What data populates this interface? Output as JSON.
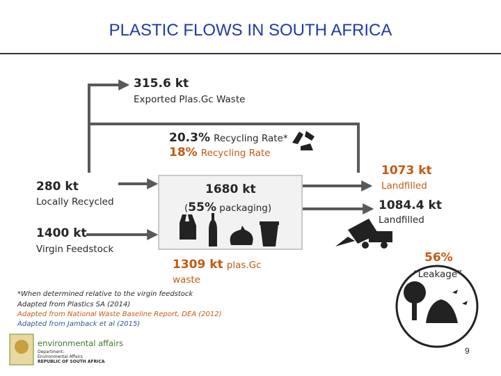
{
  "header": {
    "title": "PLASTIC FLOWS IN SOUTH AFRICA"
  },
  "exported": {
    "amount": "315.6 kt",
    "label": "Exported Plas.Gc Waste"
  },
  "recycling": {
    "rate_star": "20.3%",
    "rate_star_label": "Recycling Rate*",
    "rate": "18%",
    "rate_label": "Recycling Rate"
  },
  "locally_recycled": {
    "amount": "280 kt",
    "label": "Locally Recycled"
  },
  "virgin": {
    "amount": "1400 kt",
    "label": "Virgin Feedstock"
  },
  "consumption": {
    "amount": "1680 kt",
    "open": "(",
    "share": "55%",
    "rest": " packaging)"
  },
  "waste": {
    "amount": "1309 kt",
    "word": "plas.Gc",
    "label": "waste"
  },
  "landfill_a": {
    "amount": "1073 kt",
    "label": "Landfilled"
  },
  "landfill_b": {
    "amount": "1084.4 kt",
    "label": "Landfilled"
  },
  "leakage": {
    "share": "56%",
    "label": "“Leakage”"
  },
  "notes": [
    "*When determined relative to the virgin feedstock",
    "Adapted from Plastics SA (2014)",
    "Adapted from National Waste Baseline Report, DEA (2012)",
    "Adapted from Jamback et al (2015)"
  ],
  "logo": {
    "name": "environmental affairs",
    "lines": [
      "Department:",
      "Environmental Affairs",
      "REPUBLIC OF SOUTH AFRICA"
    ]
  },
  "page_number": "9"
}
